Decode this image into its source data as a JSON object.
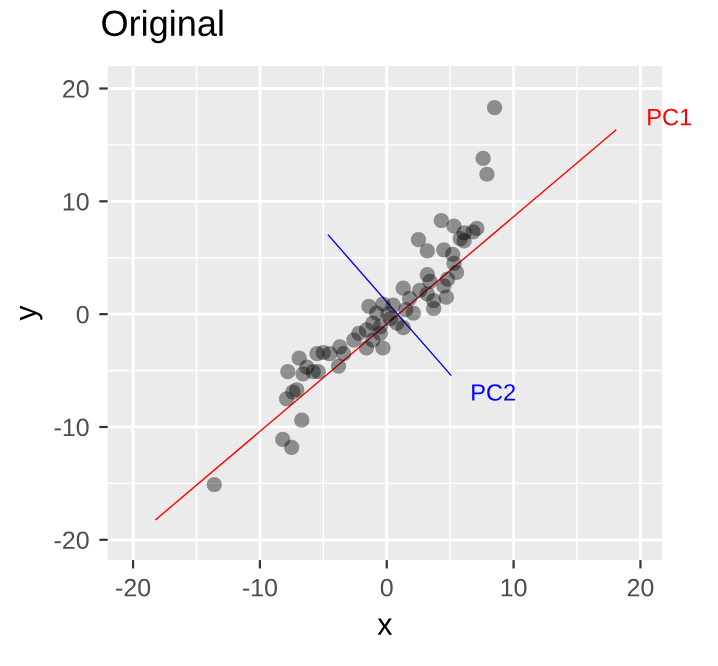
{
  "chart_data": {
    "type": "scatter",
    "title": "Original",
    "xlabel": "x",
    "ylabel": "y",
    "xlim": [
      -22,
      21.7
    ],
    "ylim": [
      -21.8,
      22
    ],
    "xticks": [
      -20,
      -10,
      0,
      10,
      20
    ],
    "yticks": [
      -20,
      -10,
      0,
      10,
      20
    ],
    "grid": true,
    "marker": "circle",
    "series": [
      {
        "color": "#000000",
        "x": [
          8.5,
          7.6,
          7.9,
          4.3,
          5.3,
          7.1,
          6.8,
          5.8,
          6.1,
          2.5,
          3.2,
          4.5,
          5.2,
          5.3,
          5.5,
          3.2,
          4.8,
          3.4,
          4.5,
          1.3,
          2.6,
          4.7,
          3.7,
          3.7,
          1.8,
          1.5,
          0.5,
          -0.3,
          -1.4,
          -0.8,
          0.1,
          1.3,
          0.8,
          -1.1,
          -0.5,
          -1.6,
          -2.2,
          -1.1,
          -0.3,
          -1.6,
          -2.6,
          -3.7,
          -3.4,
          -3.8,
          -4.5,
          -5.0,
          -5.5,
          -5.4,
          -6.9,
          -6.3,
          -7.8,
          -5.8,
          -7.1,
          -7.9,
          -7.4,
          -6.7,
          -8.2,
          -7.5,
          -13.6,
          -6.6,
          -0.5,
          0.3,
          2.1,
          3.2,
          6.1
        ],
        "values": [
          18.3,
          13.8,
          12.4,
          8.3,
          7.8,
          7.6,
          7.3,
          6.7,
          6.5,
          6.6,
          5.6,
          5.7,
          5.3,
          4.5,
          3.7,
          3.5,
          3.1,
          2.9,
          2.5,
          2.3,
          2.1,
          1.5,
          1.2,
          0.5,
          1.4,
          0.4,
          0.8,
          0.9,
          0.7,
          0.1,
          0.0,
          -1.2,
          -0.8,
          -0.8,
          -1.1,
          -1.4,
          -1.7,
          -2.3,
          -3.0,
          -3.0,
          -2.3,
          -2.9,
          -3.5,
          -4.6,
          -3.5,
          -3.4,
          -3.5,
          -5.1,
          -3.9,
          -4.7,
          -5.1,
          -5.1,
          -6.7,
          -7.5,
          -6.9,
          -9.4,
          -11.1,
          -11.8,
          -15.1,
          -5.3,
          -1.7,
          -0.4,
          0.1,
          1.8,
          7.2
        ]
      },
      {
        "type": "line",
        "name": "PC1",
        "color": "#ff0000",
        "x": [
          -18.2,
          18.05
        ],
        "values": [
          -18.2,
          16.3
        ],
        "marker": "none"
      },
      {
        "type": "line",
        "name": "PC2",
        "color": "#0000ff",
        "x": [
          -4.6,
          5.05
        ],
        "values": [
          7.0,
          -5.4
        ],
        "marker": "none"
      }
    ]
  }
}
